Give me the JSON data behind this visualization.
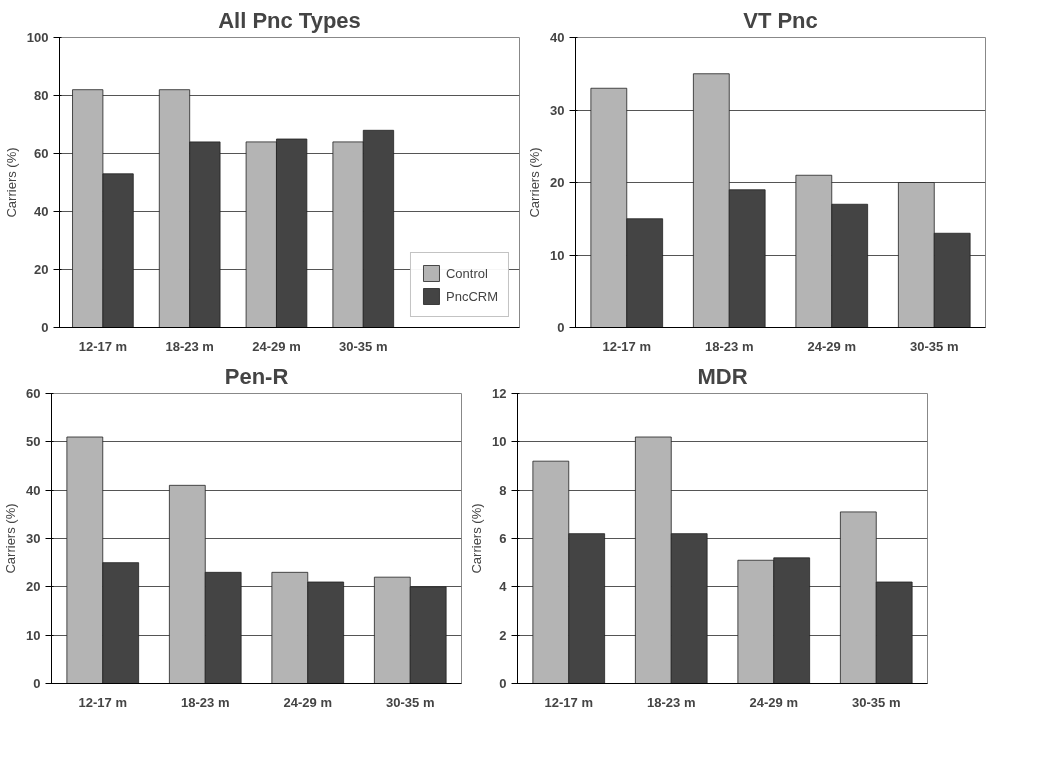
{
  "chart_data": [
    {
      "type": "bar",
      "title": "All Pnc Types",
      "ylabel": "Carriers (%)",
      "categories": [
        "12-17 m",
        "18-23 m",
        "24-29 m",
        "30-35 m"
      ],
      "ylim": [
        0,
        100
      ],
      "yticks": [
        0,
        20,
        40,
        60,
        80,
        100
      ],
      "grid": "y",
      "legend": "right",
      "series": [
        {
          "name": "Control",
          "color": "#b4b4b4",
          "values": [
            82,
            82,
            64,
            64
          ]
        },
        {
          "name": "PncCRM",
          "color": "#444444",
          "values": [
            53,
            64,
            65,
            68
          ]
        }
      ]
    },
    {
      "type": "bar",
      "title": "VT Pnc",
      "ylabel": "Carriers (%)",
      "categories": [
        "12-17 m",
        "18-23 m",
        "24-29 m",
        "30-35 m"
      ],
      "ylim": [
        0,
        40
      ],
      "yticks": [
        0,
        10,
        20,
        30,
        40
      ],
      "grid": "y",
      "series": [
        {
          "color": "#b4b4b4",
          "values": [
            33,
            35,
            21,
            20
          ]
        },
        {
          "color": "#444444",
          "values": [
            15,
            19,
            17,
            13
          ]
        }
      ]
    },
    {
      "type": "bar",
      "title": "Pen-R",
      "ylabel": "Carriers (%)",
      "categories": [
        "12-17 m",
        "18-23 m",
        "24-29 m",
        "30-35 m"
      ],
      "ylim": [
        0,
        60
      ],
      "yticks": [
        0,
        10,
        20,
        30,
        40,
        50,
        60
      ],
      "grid": "y",
      "series": [
        {
          "color": "#b4b4b4",
          "values": [
            51,
            41,
            23,
            22
          ]
        },
        {
          "color": "#444444",
          "values": [
            25,
            23,
            21,
            20
          ]
        }
      ]
    },
    {
      "type": "bar",
      "title": "MDR",
      "ylabel": "Carriers (%)",
      "categories": [
        "12-17 m",
        "18-23 m",
        "24-29 m",
        "30-35 m"
      ],
      "ylim": [
        0,
        12
      ],
      "yticks": [
        0,
        2,
        4,
        6,
        8,
        10,
        12
      ],
      "grid": "y",
      "series": [
        {
          "color": "#b4b4b4",
          "values": [
            9.2,
            10.2,
            5.1,
            7.1
          ]
        },
        {
          "color": "#444444",
          "values": [
            6.2,
            6.2,
            5.2,
            4.2
          ]
        }
      ]
    }
  ]
}
